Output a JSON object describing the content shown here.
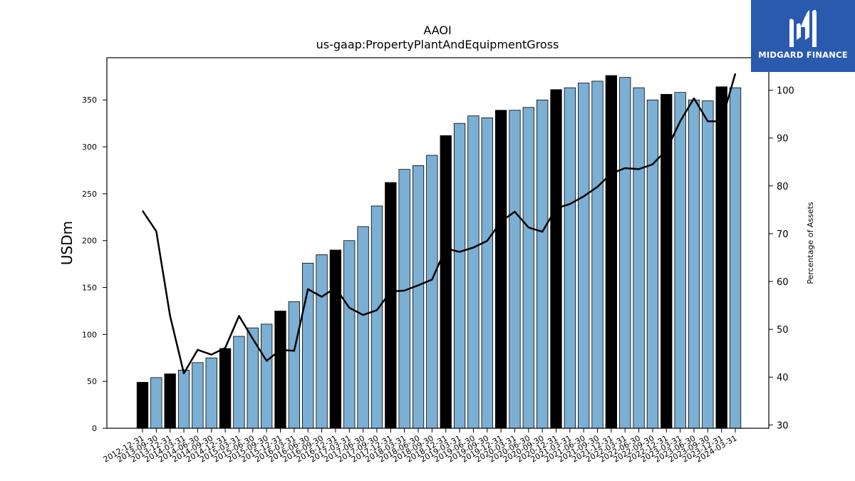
{
  "chart_data": {
    "type": "bar",
    "title": "AAOI",
    "subtitle": "us-gaap:PropertyPlantAndEquipmentGross",
    "ylabel": "USDm",
    "y2label": "Percentage of Assets",
    "ylim": [
      0,
      395
    ],
    "y2lim": [
      29.3,
      106.8
    ],
    "y_ticks": [
      0,
      50,
      100,
      150,
      200,
      250,
      300,
      350
    ],
    "y2_ticks": [
      30,
      40,
      50,
      60,
      70,
      80,
      90,
      100
    ],
    "grid": false,
    "colors": {
      "annual_bar": "#000000",
      "quarterly_bar": "#7bafd4",
      "line": "#000000"
    },
    "categories": [
      "2012-12-31",
      "2013-09-30",
      "2013-12-31",
      "2014-03-31",
      "2014-06-30",
      "2014-09-30",
      "2014-12-31",
      "2015-03-31",
      "2015-06-30",
      "2015-09-30",
      "2015-12-31",
      "2016-03-31",
      "2016-06-30",
      "2016-09-30",
      "2016-12-31",
      "2017-03-31",
      "2017-06-30",
      "2017-09-30",
      "2017-12-31",
      "2018-03-31",
      "2018-06-30",
      "2018-09-30",
      "2018-12-31",
      "2019-03-31",
      "2019-06-30",
      "2019-09-30",
      "2019-12-31",
      "2020-03-31",
      "2020-06-30",
      "2020-09-30",
      "2020-12-31",
      "2021-03-31",
      "2021-06-30",
      "2021-09-30",
      "2021-12-31",
      "2022-03-31",
      "2022-06-30",
      "2022-09-30",
      "2022-12-31",
      "2023-03-31",
      "2023-06-30",
      "2023-09-30",
      "2023-12-31",
      "2024-03-31"
    ],
    "series": [
      {
        "kind": "bar",
        "values": [
          49,
          54,
          58,
          62,
          70,
          75,
          85,
          98,
          107,
          111,
          125,
          135,
          176,
          185,
          190,
          200,
          215,
          237,
          262,
          276,
          280,
          291,
          312,
          325,
          333,
          331,
          339,
          339,
          342,
          350,
          361,
          363,
          368,
          370,
          376,
          374,
          363,
          350,
          356,
          358,
          350,
          349,
          364,
          363
        ],
        "annual": [
          true,
          false,
          true,
          false,
          false,
          false,
          true,
          false,
          false,
          false,
          true,
          false,
          false,
          false,
          true,
          false,
          false,
          false,
          true,
          false,
          false,
          false,
          true,
          false,
          false,
          false,
          true,
          false,
          false,
          false,
          true,
          false,
          false,
          false,
          true,
          false,
          false,
          false,
          true,
          false,
          false,
          false,
          true,
          false
        ]
      },
      {
        "kind": "line",
        "axis": "right",
        "values": [
          74.8,
          70.5,
          52.8,
          40.8,
          45.7,
          44.7,
          46.1,
          52.8,
          48.0,
          43.4,
          45.7,
          45.5,
          58.4,
          56.8,
          58.7,
          54.5,
          53.0,
          54.0,
          57.9,
          58.1,
          59.2,
          60.4,
          66.9,
          66.2,
          67.1,
          68.5,
          72.5,
          74.6,
          71.3,
          70.4,
          75.3,
          76.2,
          77.8,
          79.8,
          82.6,
          83.7,
          83.5,
          84.5,
          87.5,
          93.5,
          98.3,
          93.5,
          93.5,
          103.5
        ]
      }
    ]
  },
  "logo": {
    "text": "MIDGARD FINANCE"
  }
}
